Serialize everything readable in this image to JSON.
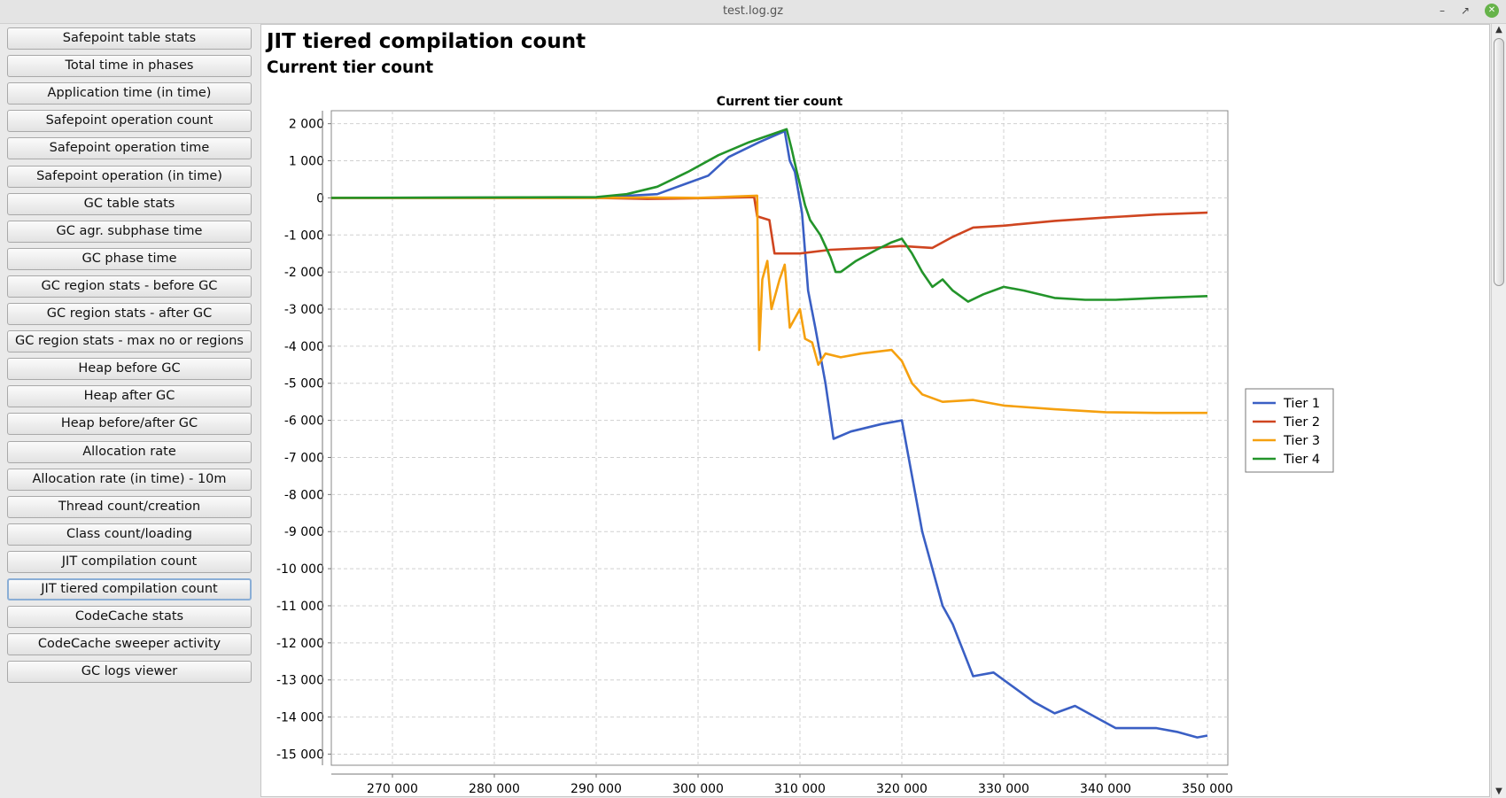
{
  "window": {
    "title": "test.log.gz",
    "minimize_icon": "minimize-icon",
    "maximize_icon": "maximize-icon",
    "close_icon": "close-icon"
  },
  "sidebar": {
    "items": [
      {
        "label": "Safepoint table stats"
      },
      {
        "label": "Total time in phases"
      },
      {
        "label": "Application time (in time)"
      },
      {
        "label": "Safepoint operation count"
      },
      {
        "label": "Safepoint operation time"
      },
      {
        "label": "Safepoint operation (in time)"
      },
      {
        "label": "GC table stats"
      },
      {
        "label": "GC agr. subphase time"
      },
      {
        "label": "GC phase time"
      },
      {
        "label": "GC region stats - before GC"
      },
      {
        "label": "GC region stats - after GC"
      },
      {
        "label": "GC region stats - max no or regions"
      },
      {
        "label": "Heap before GC"
      },
      {
        "label": "Heap after GC"
      },
      {
        "label": "Heap before/after GC"
      },
      {
        "label": "Allocation rate"
      },
      {
        "label": "Allocation rate (in time) - 10m"
      },
      {
        "label": "Thread count/creation"
      },
      {
        "label": "Class count/loading"
      },
      {
        "label": "JIT compilation count"
      },
      {
        "label": "JIT tiered compilation count",
        "selected": true
      },
      {
        "label": "CodeCache stats"
      },
      {
        "label": "CodeCache sweeper activity"
      },
      {
        "label": "GC logs viewer"
      }
    ]
  },
  "main": {
    "title": "JIT tiered compilation count",
    "subtitle": "Current tier count"
  },
  "chart_data": {
    "type": "line",
    "title": "Current tier count",
    "xlabel": "",
    "ylabel": "",
    "xlim": [
      264000,
      352000
    ],
    "ylim": [
      -15300,
      2350
    ],
    "x_ticks": [
      270000,
      280000,
      290000,
      300000,
      310000,
      320000,
      330000,
      340000,
      350000
    ],
    "y_ticks": [
      2000,
      1000,
      0,
      -1000,
      -2000,
      -3000,
      -4000,
      -5000,
      -6000,
      -7000,
      -8000,
      -9000,
      -10000,
      -11000,
      -12000,
      -13000,
      -14000,
      -15000
    ],
    "grid": true,
    "legend_position": "right",
    "series": [
      {
        "name": "Tier 1",
        "color": "#3a5fc4",
        "points": [
          [
            264000,
            0
          ],
          [
            290000,
            10
          ],
          [
            296000,
            100
          ],
          [
            299000,
            400
          ],
          [
            301000,
            600
          ],
          [
            303000,
            1100
          ],
          [
            306000,
            1500
          ],
          [
            308500,
            1800
          ],
          [
            309000,
            1000
          ],
          [
            309500,
            700
          ],
          [
            310200,
            -400
          ],
          [
            310800,
            -2500
          ],
          [
            311500,
            -3500
          ],
          [
            312500,
            -5000
          ],
          [
            313300,
            -6500
          ],
          [
            315000,
            -6300
          ],
          [
            318000,
            -6100
          ],
          [
            320000,
            -6000
          ],
          [
            321000,
            -7500
          ],
          [
            322000,
            -9000
          ],
          [
            323000,
            -10000
          ],
          [
            324000,
            -11000
          ],
          [
            325000,
            -11500
          ],
          [
            326000,
            -12200
          ],
          [
            327000,
            -12900
          ],
          [
            329000,
            -12800
          ],
          [
            331000,
            -13200
          ],
          [
            333000,
            -13600
          ],
          [
            335000,
            -13900
          ],
          [
            337000,
            -13700
          ],
          [
            339000,
            -14000
          ],
          [
            341000,
            -14300
          ],
          [
            345000,
            -14300
          ],
          [
            347000,
            -14400
          ],
          [
            349000,
            -14550
          ],
          [
            350000,
            -14500
          ]
        ]
      },
      {
        "name": "Tier 2",
        "color": "#cf4520",
        "points": [
          [
            264000,
            0
          ],
          [
            290000,
            0
          ],
          [
            295000,
            -30
          ],
          [
            300000,
            -10
          ],
          [
            305500,
            20
          ],
          [
            305800,
            -500
          ],
          [
            307000,
            -600
          ],
          [
            307500,
            -1500
          ],
          [
            310000,
            -1500
          ],
          [
            313000,
            -1400
          ],
          [
            317000,
            -1350
          ],
          [
            320000,
            -1300
          ],
          [
            323000,
            -1350
          ],
          [
            325000,
            -1050
          ],
          [
            327000,
            -800
          ],
          [
            330000,
            -750
          ],
          [
            335000,
            -620
          ],
          [
            340000,
            -530
          ],
          [
            345000,
            -450
          ],
          [
            350000,
            -400
          ]
        ]
      },
      {
        "name": "Tier 3",
        "color": "#f5a00f",
        "points": [
          [
            264000,
            0
          ],
          [
            290000,
            0
          ],
          [
            295000,
            10
          ],
          [
            300000,
            0
          ],
          [
            305800,
            60
          ],
          [
            306000,
            -4100
          ],
          [
            306300,
            -2200
          ],
          [
            306800,
            -1700
          ],
          [
            307200,
            -3000
          ],
          [
            308000,
            -2200
          ],
          [
            308500,
            -1800
          ],
          [
            309000,
            -3500
          ],
          [
            310000,
            -3000
          ],
          [
            310500,
            -3800
          ],
          [
            311200,
            -3900
          ],
          [
            311800,
            -4500
          ],
          [
            312500,
            -4200
          ],
          [
            314000,
            -4300
          ],
          [
            316000,
            -4200
          ],
          [
            319000,
            -4100
          ],
          [
            320000,
            -4400
          ],
          [
            321000,
            -5000
          ],
          [
            322000,
            -5300
          ],
          [
            324000,
            -5500
          ],
          [
            327000,
            -5450
          ],
          [
            330000,
            -5600
          ],
          [
            335000,
            -5700
          ],
          [
            340000,
            -5780
          ],
          [
            345000,
            -5800
          ],
          [
            350000,
            -5800
          ]
        ]
      },
      {
        "name": "Tier 4",
        "color": "#23942a",
        "points": [
          [
            264000,
            0
          ],
          [
            290000,
            20
          ],
          [
            293000,
            100
          ],
          [
            296000,
            300
          ],
          [
            299000,
            700
          ],
          [
            302000,
            1150
          ],
          [
            305000,
            1500
          ],
          [
            308700,
            1850
          ],
          [
            309200,
            1300
          ],
          [
            309700,
            700
          ],
          [
            310500,
            -200
          ],
          [
            311000,
            -600
          ],
          [
            312000,
            -1000
          ],
          [
            313000,
            -1600
          ],
          [
            313500,
            -2000
          ],
          [
            314000,
            -2000
          ],
          [
            315500,
            -1700
          ],
          [
            317500,
            -1400
          ],
          [
            319000,
            -1200
          ],
          [
            320000,
            -1100
          ],
          [
            321000,
            -1500
          ],
          [
            322000,
            -2000
          ],
          [
            323000,
            -2400
          ],
          [
            324000,
            -2200
          ],
          [
            325000,
            -2500
          ],
          [
            326500,
            -2800
          ],
          [
            328000,
            -2600
          ],
          [
            330000,
            -2400
          ],
          [
            332000,
            -2500
          ],
          [
            335000,
            -2700
          ],
          [
            338000,
            -2750
          ],
          [
            341000,
            -2750
          ],
          [
            345000,
            -2700
          ],
          [
            350000,
            -2650
          ]
        ]
      }
    ]
  }
}
